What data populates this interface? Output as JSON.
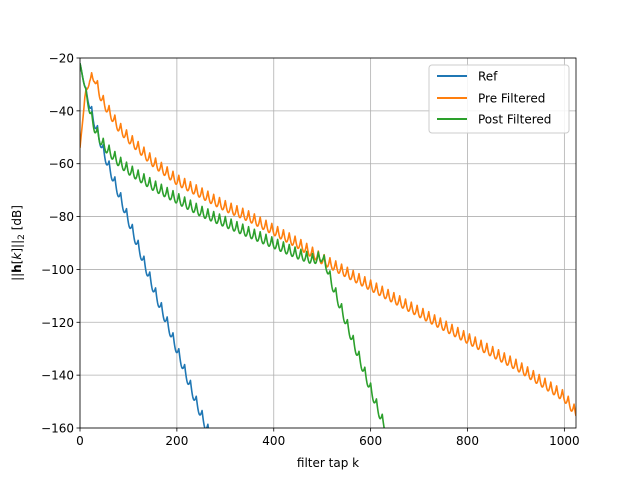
{
  "chart_data": {
    "type": "line",
    "xlabel": "filter tap k",
    "ylabel_parts": {
      "pre": "||",
      "bold": "h",
      "mid": "[",
      "italic": "k",
      "post": "]||",
      "sub": "2",
      "unit": " [dB]"
    },
    "xlim": [
      0,
      1024
    ],
    "ylim": [
      -160,
      -20
    ],
    "x_ticks": [
      0,
      200,
      400,
      600,
      800,
      1000
    ],
    "x_tick_labels": [
      "0",
      "200",
      "400",
      "600",
      "800",
      "1000"
    ],
    "y_ticks": [
      -160,
      -140,
      -120,
      -100,
      -80,
      -60,
      -40,
      -20
    ],
    "y_tick_labels": [
      "−160",
      "−140",
      "−120",
      "−100",
      "−80",
      "−60",
      "−40",
      "−20"
    ],
    "grid": true,
    "legend_position": "upper-right",
    "series": [
      {
        "name": "Ref",
        "color": "#1f77b4",
        "x": [
          0,
          10,
          20,
          30,
          40,
          50,
          60,
          70,
          80,
          100,
          120,
          140,
          160,
          180,
          200,
          220,
          240,
          260,
          275
        ],
        "y": [
          -22,
          -30,
          -36,
          -42,
          -48,
          -54,
          -59,
          -64,
          -69,
          -79,
          -89,
          -99,
          -109,
          -118,
          -128,
          -138,
          -148,
          -157,
          -163
        ],
        "ripple": 4,
        "period": 12
      },
      {
        "name": "Pre Filtered",
        "color": "#ff7f0e",
        "x": [
          0,
          10,
          20,
          30,
          40,
          50,
          60,
          70,
          80,
          100,
          150,
          200,
          250,
          300,
          350,
          400,
          450,
          500,
          550,
          600,
          650,
          700,
          750,
          800,
          850,
          900,
          950,
          1000,
          1024
        ],
        "y": [
          -54,
          -34,
          -26,
          -25,
          -31,
          -35,
          -38,
          -41,
          -44,
          -48,
          -57,
          -64,
          -69,
          -74,
          -78,
          -83,
          -88,
          -94,
          -99,
          -104,
          -109,
          -114,
          -119,
          -124,
          -129,
          -134,
          -140,
          -146,
          -152
        ],
        "ripple": 4,
        "period": 12
      },
      {
        "name": "Post Filtered",
        "color": "#2ca02c",
        "x": [
          0,
          10,
          20,
          30,
          40,
          50,
          60,
          70,
          80,
          100,
          150,
          200,
          250,
          300,
          350,
          400,
          450,
          480,
          500,
          510,
          520,
          540,
          560,
          580,
          600,
          620,
          640,
          650
        ],
        "y": [
          -22,
          -30,
          -38,
          -44,
          -48,
          -51,
          -53,
          -55,
          -57,
          -60,
          -66,
          -71,
          -76,
          -80,
          -84,
          -88,
          -92,
          -94,
          -93,
          -97,
          -103,
          -113,
          -123,
          -133,
          -143,
          -153,
          -162,
          -166
        ],
        "ripple": 4,
        "period": 12
      }
    ]
  }
}
